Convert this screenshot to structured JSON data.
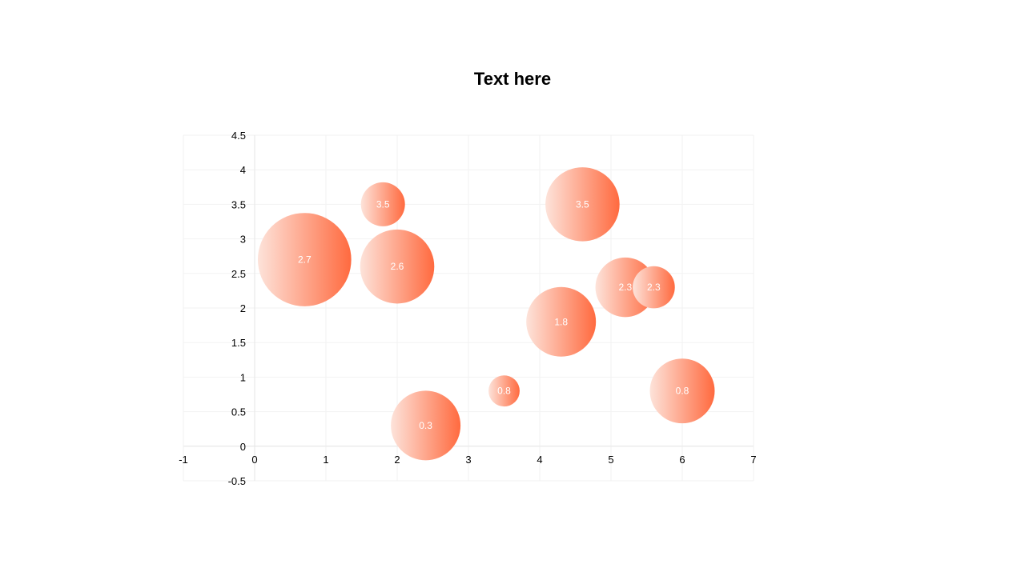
{
  "chart_data": {
    "type": "bubble",
    "title": "Text here",
    "xlabel": "",
    "ylabel": "",
    "xlim": [
      -1,
      7
    ],
    "ylim": [
      -0.5,
      4.5
    ],
    "x_ticks": [
      -1,
      0,
      1,
      2,
      3,
      4,
      5,
      6,
      7
    ],
    "y_ticks": [
      -0.5,
      0,
      0.5,
      1,
      1.5,
      2,
      2.5,
      3,
      3.5,
      4,
      4.5
    ],
    "grid": true,
    "legend": "none",
    "colors": {
      "bubble_light": "#fde3da",
      "bubble_dark": "#ff6a3f",
      "grid": "#f2f2f2",
      "axis": "#e6e6e6",
      "label": "#ffffff"
    },
    "points": [
      {
        "x": 0.7,
        "y": 2.7,
        "size": 2.7,
        "label": "2.7"
      },
      {
        "x": 1.8,
        "y": 3.5,
        "size": 0.6,
        "label": "3.5"
      },
      {
        "x": 2.0,
        "y": 2.6,
        "size": 1.7,
        "label": "2.6"
      },
      {
        "x": 2.4,
        "y": 0.3,
        "size": 1.5,
        "label": "0.3"
      },
      {
        "x": 3.5,
        "y": 0.8,
        "size": 0.3,
        "label": "0.8"
      },
      {
        "x": 4.3,
        "y": 1.8,
        "size": 1.5,
        "label": "1.8"
      },
      {
        "x": 4.6,
        "y": 3.5,
        "size": 1.7,
        "label": "3.5"
      },
      {
        "x": 5.2,
        "y": 2.3,
        "size": 1.1,
        "label": "2.3"
      },
      {
        "x": 5.6,
        "y": 2.3,
        "size": 0.55,
        "label": "2.3"
      },
      {
        "x": 6.0,
        "y": 0.8,
        "size": 1.3,
        "label": "0.8"
      }
    ]
  }
}
